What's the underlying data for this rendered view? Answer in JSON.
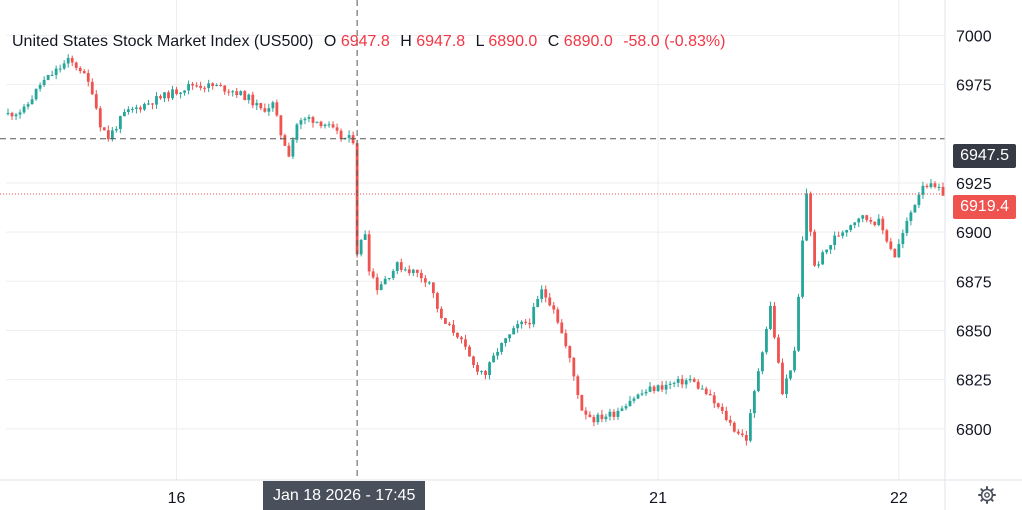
{
  "legend": {
    "title": "United States Stock Market Index (US500)",
    "o_label": "O",
    "o_value": "6947.8",
    "h_label": "H",
    "h_value": "6947.8",
    "l_label": "L",
    "l_value": "6890.0",
    "c_label": "C",
    "c_value": "6890.0",
    "change": "-58.0 (-0.83%)"
  },
  "crosshair": {
    "price_label": "6947.5",
    "time_label": "Jan 18 2026 - 17:45"
  },
  "last_price_label": "6919.4",
  "colors": {
    "up": "#26a69a",
    "down": "#ef5350",
    "grid": "#eeeeee",
    "text": "#131722",
    "tag_dark": "#4a4f5c"
  },
  "chart_data": {
    "type": "candlestick",
    "title": "United States Stock Market Index (US500)",
    "xlabel": "",
    "ylabel": "",
    "ylim": [
      6774,
      7018
    ],
    "yticks": [
      7000,
      6975,
      6925,
      6900,
      6875,
      6850,
      6825,
      6800
    ],
    "xticks": [
      {
        "label": "16",
        "index": 42
      },
      {
        "label": "21",
        "index": 162
      },
      {
        "label": "22",
        "index": 222
      }
    ],
    "grid": true,
    "crosshair_index": 87,
    "crosshair_price": 6947.5,
    "last_price": 6919.4,
    "path": [
      [
        0,
        6960
      ],
      [
        4,
        6962
      ],
      [
        8,
        6975
      ],
      [
        12,
        6982
      ],
      [
        15,
        6987
      ],
      [
        18,
        6983
      ],
      [
        21,
        6972
      ],
      [
        23,
        6955
      ],
      [
        25,
        6948
      ],
      [
        29,
        6960
      ],
      [
        34,
        6965
      ],
      [
        40,
        6970
      ],
      [
        46,
        6975
      ],
      [
        52,
        6974
      ],
      [
        56,
        6972
      ],
      [
        60,
        6968
      ],
      [
        63,
        6962
      ],
      [
        66,
        6965
      ],
      [
        68,
        6950
      ],
      [
        70,
        6940
      ],
      [
        72,
        6955
      ],
      [
        75,
        6958
      ],
      [
        79,
        6955
      ],
      [
        83,
        6948
      ],
      [
        86,
        6947
      ],
      [
        87,
        6890
      ],
      [
        89,
        6900
      ],
      [
        90,
        6882
      ],
      [
        92,
        6872
      ],
      [
        97,
        6883
      ],
      [
        101,
        6880
      ],
      [
        105,
        6875
      ],
      [
        108,
        6855
      ],
      [
        112,
        6848
      ],
      [
        116,
        6832
      ],
      [
        119,
        6828
      ],
      [
        122,
        6840
      ],
      [
        127,
        6852
      ],
      [
        130,
        6855
      ],
      [
        133,
        6870
      ],
      [
        136,
        6862
      ],
      [
        140,
        6835
      ],
      [
        143,
        6810
      ],
      [
        146,
        6805
      ],
      [
        151,
        6808
      ],
      [
        155,
        6815
      ],
      [
        160,
        6820
      ],
      [
        164,
        6822
      ],
      [
        170,
        6825
      ],
      [
        174,
        6818
      ],
      [
        178,
        6808
      ],
      [
        181,
        6800
      ],
      [
        184,
        6795
      ],
      [
        187,
        6830
      ],
      [
        190,
        6862
      ],
      [
        193,
        6818
      ],
      [
        196,
        6838
      ],
      [
        198,
        6895
      ],
      [
        199,
        6920
      ],
      [
        201,
        6882
      ],
      [
        206,
        6897
      ],
      [
        212,
        6908
      ],
      [
        217,
        6905
      ],
      [
        221,
        6888
      ],
      [
        225,
        6910
      ],
      [
        228,
        6925
      ],
      [
        231,
        6922
      ],
      [
        233,
        6920
      ]
    ],
    "candles": []
  }
}
